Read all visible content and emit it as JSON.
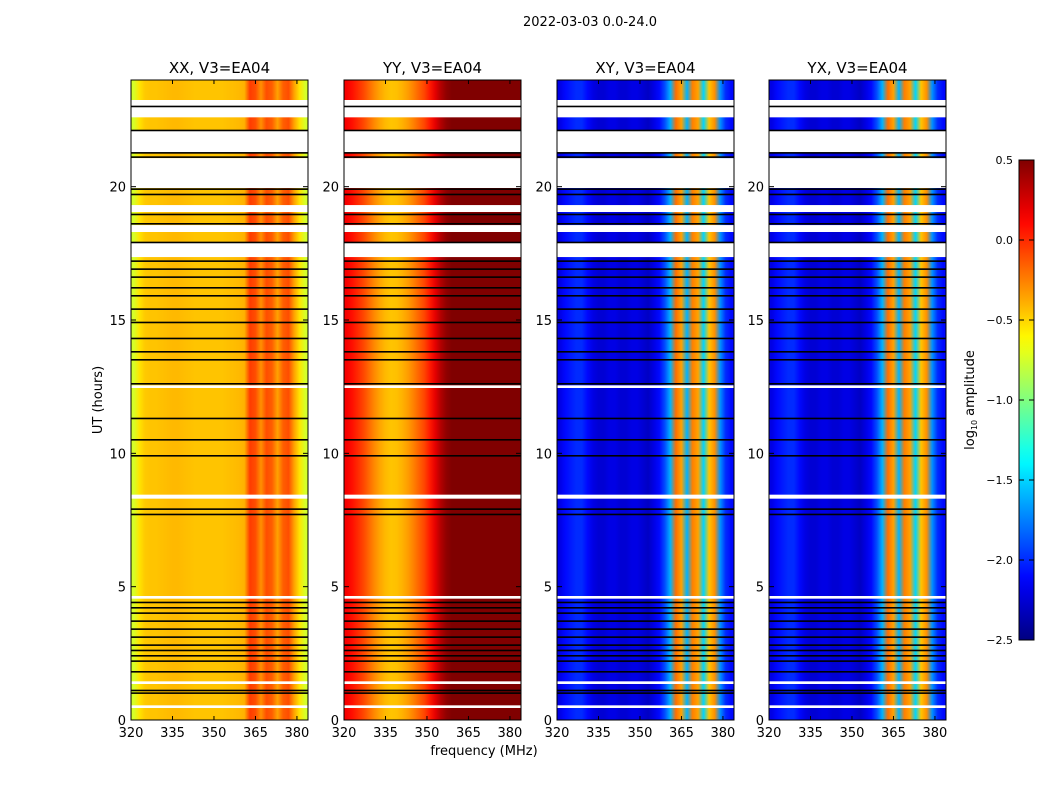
{
  "chart_data": {
    "type": "heatmap",
    "title": "2022-03-03 0.0-24.0",
    "xlabel": "frequency (MHz)",
    "ylabel": "UT (hours)",
    "xlim": [
      320,
      384
    ],
    "ylim": [
      0,
      24
    ],
    "xticks": [
      320,
      335,
      350,
      365,
      380
    ],
    "yticks": [
      0,
      5,
      10,
      15,
      20
    ],
    "colorbar": {
      "label_base": "log",
      "label_sub": "10",
      "label_rest": "amplitude",
      "range": [
        -2.5,
        0.5
      ],
      "ticks": [
        "0.5",
        "0.0",
        "−0.5",
        "−1.0",
        "−1.5",
        "−2.0",
        "−2.5"
      ],
      "tick_values": [
        0.5,
        0.0,
        -0.5,
        -1.0,
        -1.5,
        -2.0,
        -2.5
      ],
      "colormap": "jet"
    },
    "freq_bins": [
      321,
      323,
      325,
      327,
      329,
      331,
      333,
      335,
      337,
      339,
      341,
      343,
      345,
      347,
      349,
      351,
      353,
      355,
      357,
      359,
      361,
      363,
      365,
      367,
      369,
      371,
      373,
      375,
      377,
      379,
      381,
      383
    ],
    "panels": [
      {
        "title": "XX, V3=EA04",
        "profile": [
          -0.75,
          -0.55,
          -0.47,
          -0.45,
          -0.45,
          -0.44,
          -0.43,
          -0.42,
          -0.42,
          -0.43,
          -0.44,
          -0.45,
          -0.45,
          -0.45,
          -0.45,
          -0.45,
          -0.45,
          -0.44,
          -0.43,
          -0.42,
          -0.4,
          -0.05,
          -0.1,
          -0.3,
          -0.1,
          -0.15,
          -0.35,
          -0.15,
          -0.1,
          -0.35,
          -0.55,
          -0.75
        ]
      },
      {
        "title": "YY, V3=EA04",
        "profile": [
          0.15,
          0.08,
          0.0,
          -0.08,
          -0.18,
          -0.28,
          -0.36,
          -0.42,
          -0.45,
          -0.44,
          -0.4,
          -0.34,
          -0.26,
          -0.17,
          -0.08,
          0.05,
          0.2,
          0.35,
          0.45,
          0.5,
          0.5,
          0.5,
          0.5,
          0.5,
          0.5,
          0.5,
          0.5,
          0.5,
          0.5,
          0.5,
          0.5,
          0.5
        ]
      },
      {
        "title": "XY, V3=EA04",
        "profile": [
          -2.2,
          -2.1,
          -2.05,
          -2.0,
          -2.0,
          -2.1,
          -2.2,
          -2.25,
          -2.25,
          -2.2,
          -2.2,
          -2.25,
          -2.25,
          -2.2,
          -2.2,
          -2.25,
          -2.3,
          -2.2,
          -2.1,
          -1.9,
          -1.6,
          -0.2,
          -0.35,
          -1.6,
          -0.25,
          -0.35,
          -1.5,
          -0.45,
          -0.3,
          -1.7,
          -2.0,
          -2.1
        ]
      },
      {
        "title": "YX, V3=EA04",
        "profile": [
          -2.2,
          -2.1,
          -2.05,
          -2.0,
          -2.0,
          -2.1,
          -2.2,
          -2.25,
          -2.25,
          -2.2,
          -2.2,
          -2.25,
          -2.25,
          -2.2,
          -2.2,
          -2.25,
          -2.3,
          -2.2,
          -2.1,
          -1.9,
          -1.6,
          -0.2,
          -0.35,
          -1.6,
          -0.25,
          -0.35,
          -1.5,
          -0.45,
          -0.3,
          -1.7,
          -2.0,
          -2.1
        ]
      }
    ],
    "flagged_gaps": [
      [
        22.6,
        23.25
      ],
      [
        21.26,
        22.1
      ],
      [
        19.95,
        21.07
      ],
      [
        19.05,
        19.31
      ],
      [
        18.3,
        18.56
      ],
      [
        17.36,
        17.9
      ],
      [
        12.45,
        12.55
      ],
      [
        8.3,
        8.45
      ],
      [
        4.55,
        4.65
      ],
      [
        1.35,
        1.45
      ],
      [
        0.45,
        0.55
      ]
    ],
    "zero_rows": [
      23.0,
      22.1,
      21.26,
      21.1,
      19.9,
      19.7,
      18.95,
      18.6,
      17.9,
      17.2,
      16.9,
      16.6,
      16.2,
      15.9,
      15.4,
      14.9,
      14.3,
      13.8,
      13.5,
      12.6,
      11.3,
      10.5,
      9.9,
      7.9,
      7.7,
      4.4,
      4.2,
      4.0,
      3.7,
      3.4,
      3.1,
      2.8,
      2.6,
      2.4,
      2.2,
      1.8,
      1.1,
      1.0
    ]
  }
}
